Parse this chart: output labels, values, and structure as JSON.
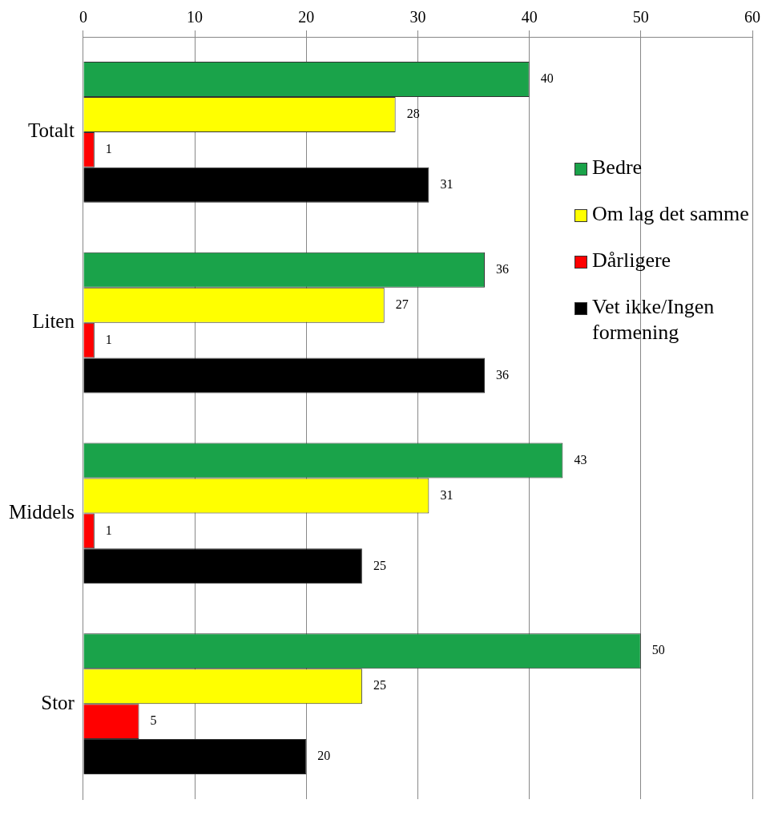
{
  "chart_data": {
    "type": "bar",
    "orientation": "horizontal",
    "categories": [
      "Totalt",
      "Liten",
      "Middels",
      "Stor"
    ],
    "series": [
      {
        "name": "Bedre",
        "color": "#1aa34a",
        "values": [
          40,
          36,
          43,
          50
        ]
      },
      {
        "name": "Om lag det samme",
        "color": "#ffff00",
        "values": [
          28,
          27,
          31,
          25
        ]
      },
      {
        "name": "Dårligere",
        "color": "#ff0000",
        "values": [
          1,
          1,
          1,
          5
        ]
      },
      {
        "name": "Vet ikke/Ingen formening",
        "color": "#000000",
        "values": [
          31,
          36,
          25,
          20
        ]
      }
    ],
    "xlim": [
      0,
      60
    ],
    "xticks": [
      0,
      10,
      20,
      30,
      40,
      50,
      60
    ],
    "grid": "x",
    "legend": "right",
    "data_labels": true
  }
}
